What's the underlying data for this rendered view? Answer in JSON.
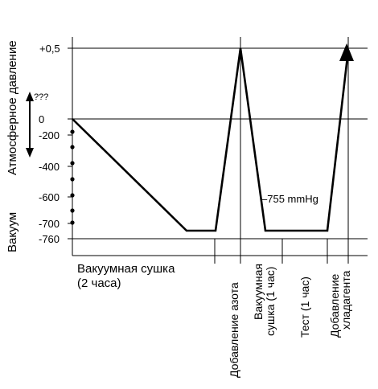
{
  "y_axis_labels": {
    "atmospheric": "Атмосферное давление",
    "vacuum": "Вакуум",
    "unknown": "???"
  },
  "ticks": [
    "+0,5",
    "0",
    "-200",
    "-400",
    "-600",
    "-700",
    "-760"
  ],
  "annotation": "–755 mmHg",
  "phases": {
    "vacuum_drying_line1": "Вакуумная сушка",
    "vacuum_drying_line2": "(2 часа)",
    "nitrogen": "Добавление азота",
    "vacuum_drying2_line1": "Вакуумная",
    "vacuum_drying2_line2": "сушка (1 час)",
    "test": "Тест  (1 час)",
    "refrigerant_line1": "Добавление",
    "refrigerant_line2": "хладагента"
  },
  "colors": {
    "line": "#000000",
    "background": "#ffffff"
  }
}
